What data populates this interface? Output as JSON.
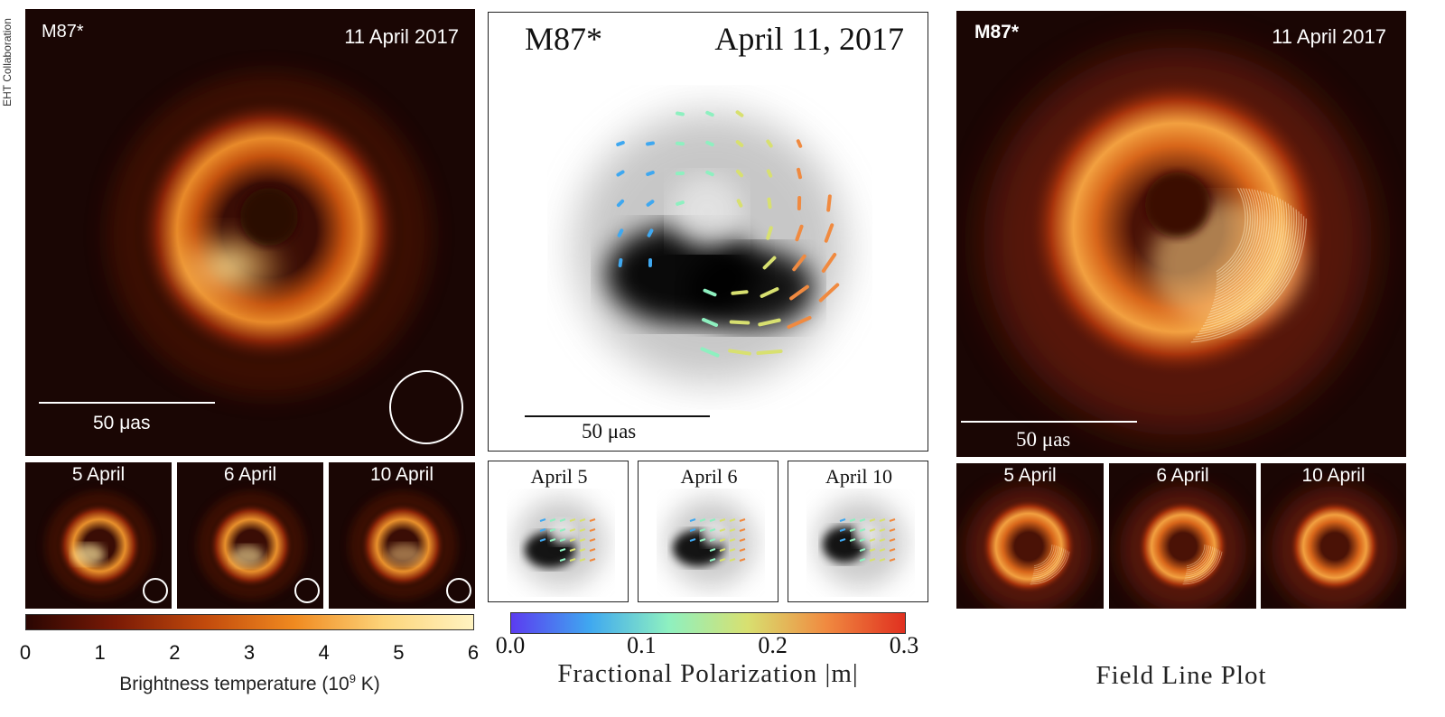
{
  "credit": "EHT Collaboration",
  "left": {
    "source": "M87*",
    "date": "11 April 2017",
    "scale_label": "50 μas",
    "small_panels": [
      {
        "label": "5 April"
      },
      {
        "label": "6 April"
      },
      {
        "label": "10 April"
      }
    ],
    "colorbar": {
      "ticks": [
        "0",
        "1",
        "2",
        "3",
        "4",
        "5",
        "6"
      ],
      "title_prefix": "Brightness temperature (10",
      "title_exp": "9",
      "title_suffix": " K)",
      "colors": [
        "#2a0602",
        "#7a1a06",
        "#c24a0c",
        "#f08a20",
        "#fcd47a",
        "#fff3c0"
      ]
    }
  },
  "middle": {
    "source": "M87*",
    "date": "April 11, 2017",
    "scale_label": "50 μas",
    "small_panels": [
      {
        "label": "April 5"
      },
      {
        "label": "April 6"
      },
      {
        "label": "April 10"
      }
    ],
    "colorbar": {
      "ticks": [
        "0.0",
        "0.1",
        "0.2",
        "0.3"
      ],
      "title": "Fractional Polarization |m|",
      "colors": [
        "#5b3cf0",
        "#3fa8f0",
        "#8ef0c0",
        "#d8e070",
        "#f08a40",
        "#e03020"
      ]
    }
  },
  "right": {
    "source": "M87*",
    "date": "11 April 2017",
    "scale_label": "50 μas",
    "small_panels": [
      {
        "label": "5 April"
      },
      {
        "label": "6 April"
      },
      {
        "label": "10 April"
      }
    ],
    "footer": "Field Line Plot"
  }
}
